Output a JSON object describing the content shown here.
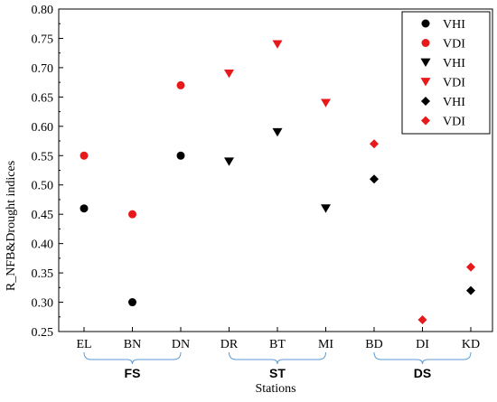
{
  "chart_data": {
    "type": "scatter",
    "title": "",
    "xlabel": "Stations",
    "ylabel": "R_NFB&Drought indices",
    "ylim": [
      0.25,
      0.8
    ],
    "y_ticks": [
      "0.25",
      "0.30",
      "0.35",
      "0.40",
      "0.45",
      "0.50",
      "0.55",
      "0.60",
      "0.65",
      "0.70",
      "0.75",
      "0.80"
    ],
    "categories": [
      "EL",
      "BN",
      "DN",
      "DR",
      "BT",
      "MI",
      "BD",
      "DI",
      "KD"
    ],
    "groups": [
      {
        "label": "FS",
        "categories": [
          "EL",
          "BN",
          "DN"
        ]
      },
      {
        "label": "ST",
        "categories": [
          "DR",
          "BT",
          "MI"
        ]
      },
      {
        "label": "DS",
        "categories": [
          "BD",
          "DI",
          "KD"
        ]
      }
    ],
    "legend_position": "top-right",
    "grid": false,
    "series": [
      {
        "name": "VHI",
        "marker": "circle",
        "color": "#000000",
        "points": [
          {
            "x": "EL",
            "y": 0.46
          },
          {
            "x": "BN",
            "y": 0.3
          },
          {
            "x": "DN",
            "y": 0.55
          }
        ]
      },
      {
        "name": "VDI",
        "marker": "circle",
        "color": "#e8191b",
        "points": [
          {
            "x": "EL",
            "y": 0.55
          },
          {
            "x": "BN",
            "y": 0.45
          },
          {
            "x": "DN",
            "y": 0.67
          }
        ]
      },
      {
        "name": "VHI",
        "marker": "triangle-down",
        "color": "#000000",
        "points": [
          {
            "x": "DR",
            "y": 0.54
          },
          {
            "x": "BT",
            "y": 0.59
          },
          {
            "x": "MI",
            "y": 0.46
          }
        ]
      },
      {
        "name": "VDI",
        "marker": "triangle-down",
        "color": "#e8191b",
        "points": [
          {
            "x": "DR",
            "y": 0.69
          },
          {
            "x": "BT",
            "y": 0.74
          },
          {
            "x": "MI",
            "y": 0.64
          }
        ]
      },
      {
        "name": "VHI",
        "marker": "diamond",
        "color": "#000000",
        "points": [
          {
            "x": "BD",
            "y": 0.51
          },
          {
            "x": "KD",
            "y": 0.32
          }
        ]
      },
      {
        "name": "VDI",
        "marker": "diamond",
        "color": "#e8191b",
        "points": [
          {
            "x": "BD",
            "y": 0.57
          },
          {
            "x": "DI",
            "y": 0.27
          },
          {
            "x": "KD",
            "y": 0.36
          }
        ]
      }
    ],
    "group_bracket_color": "#5b9bd5"
  }
}
